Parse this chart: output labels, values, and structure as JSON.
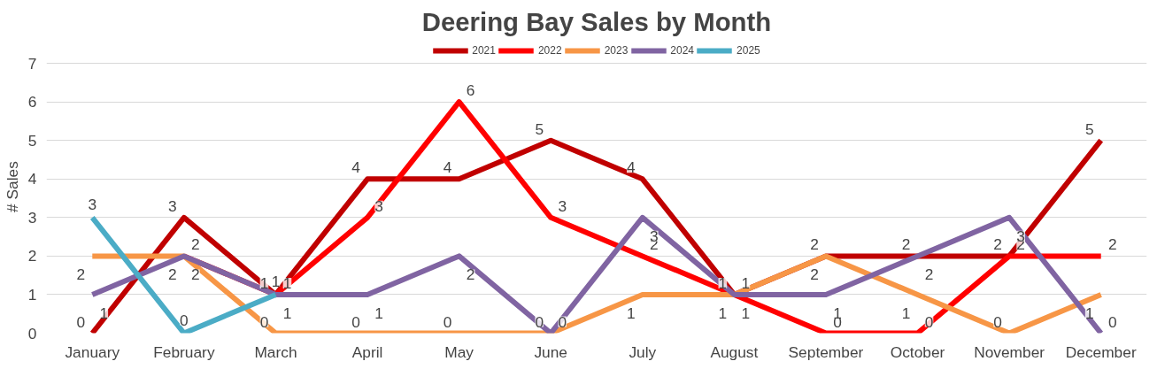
{
  "chart_data": {
    "type": "line",
    "title": "Deering Bay Sales by Month",
    "ylabel": "# Sales",
    "categories": [
      "January",
      "February",
      "March",
      "April",
      "May",
      "June",
      "July",
      "August",
      "September",
      "October",
      "November",
      "December"
    ],
    "series": [
      {
        "name": "2021",
        "color": "#c00000",
        "values": [
          0,
          3,
          1,
          4,
          4,
          5,
          4,
          1,
          2,
          2,
          2,
          5
        ]
      },
      {
        "name": "2022",
        "color": "#ff0000",
        "values": [
          null,
          2,
          1,
          3,
          6,
          3,
          2,
          1,
          0,
          0,
          2,
          2
        ]
      },
      {
        "name": "2023",
        "color": "#f79646",
        "values": [
          2,
          2,
          0,
          0,
          0,
          0,
          1,
          1,
          2,
          1,
          0,
          1
        ]
      },
      {
        "name": "2024",
        "color": "#8064a2",
        "values": [
          1,
          2,
          1,
          1,
          2,
          0,
          3,
          1,
          1,
          2,
          3,
          0
        ]
      },
      {
        "name": "2025",
        "color": "#4bacc6",
        "values": [
          3,
          0,
          1,
          null,
          null,
          null,
          null,
          null,
          null,
          null,
          null,
          null
        ]
      }
    ],
    "ylim": [
      0,
      7
    ],
    "yticks": [
      0,
      1,
      2,
      3,
      4,
      5,
      6,
      7
    ],
    "grid": "y",
    "legend": "top",
    "data_labels": true,
    "marker": "none",
    "line_style": "solid"
  }
}
